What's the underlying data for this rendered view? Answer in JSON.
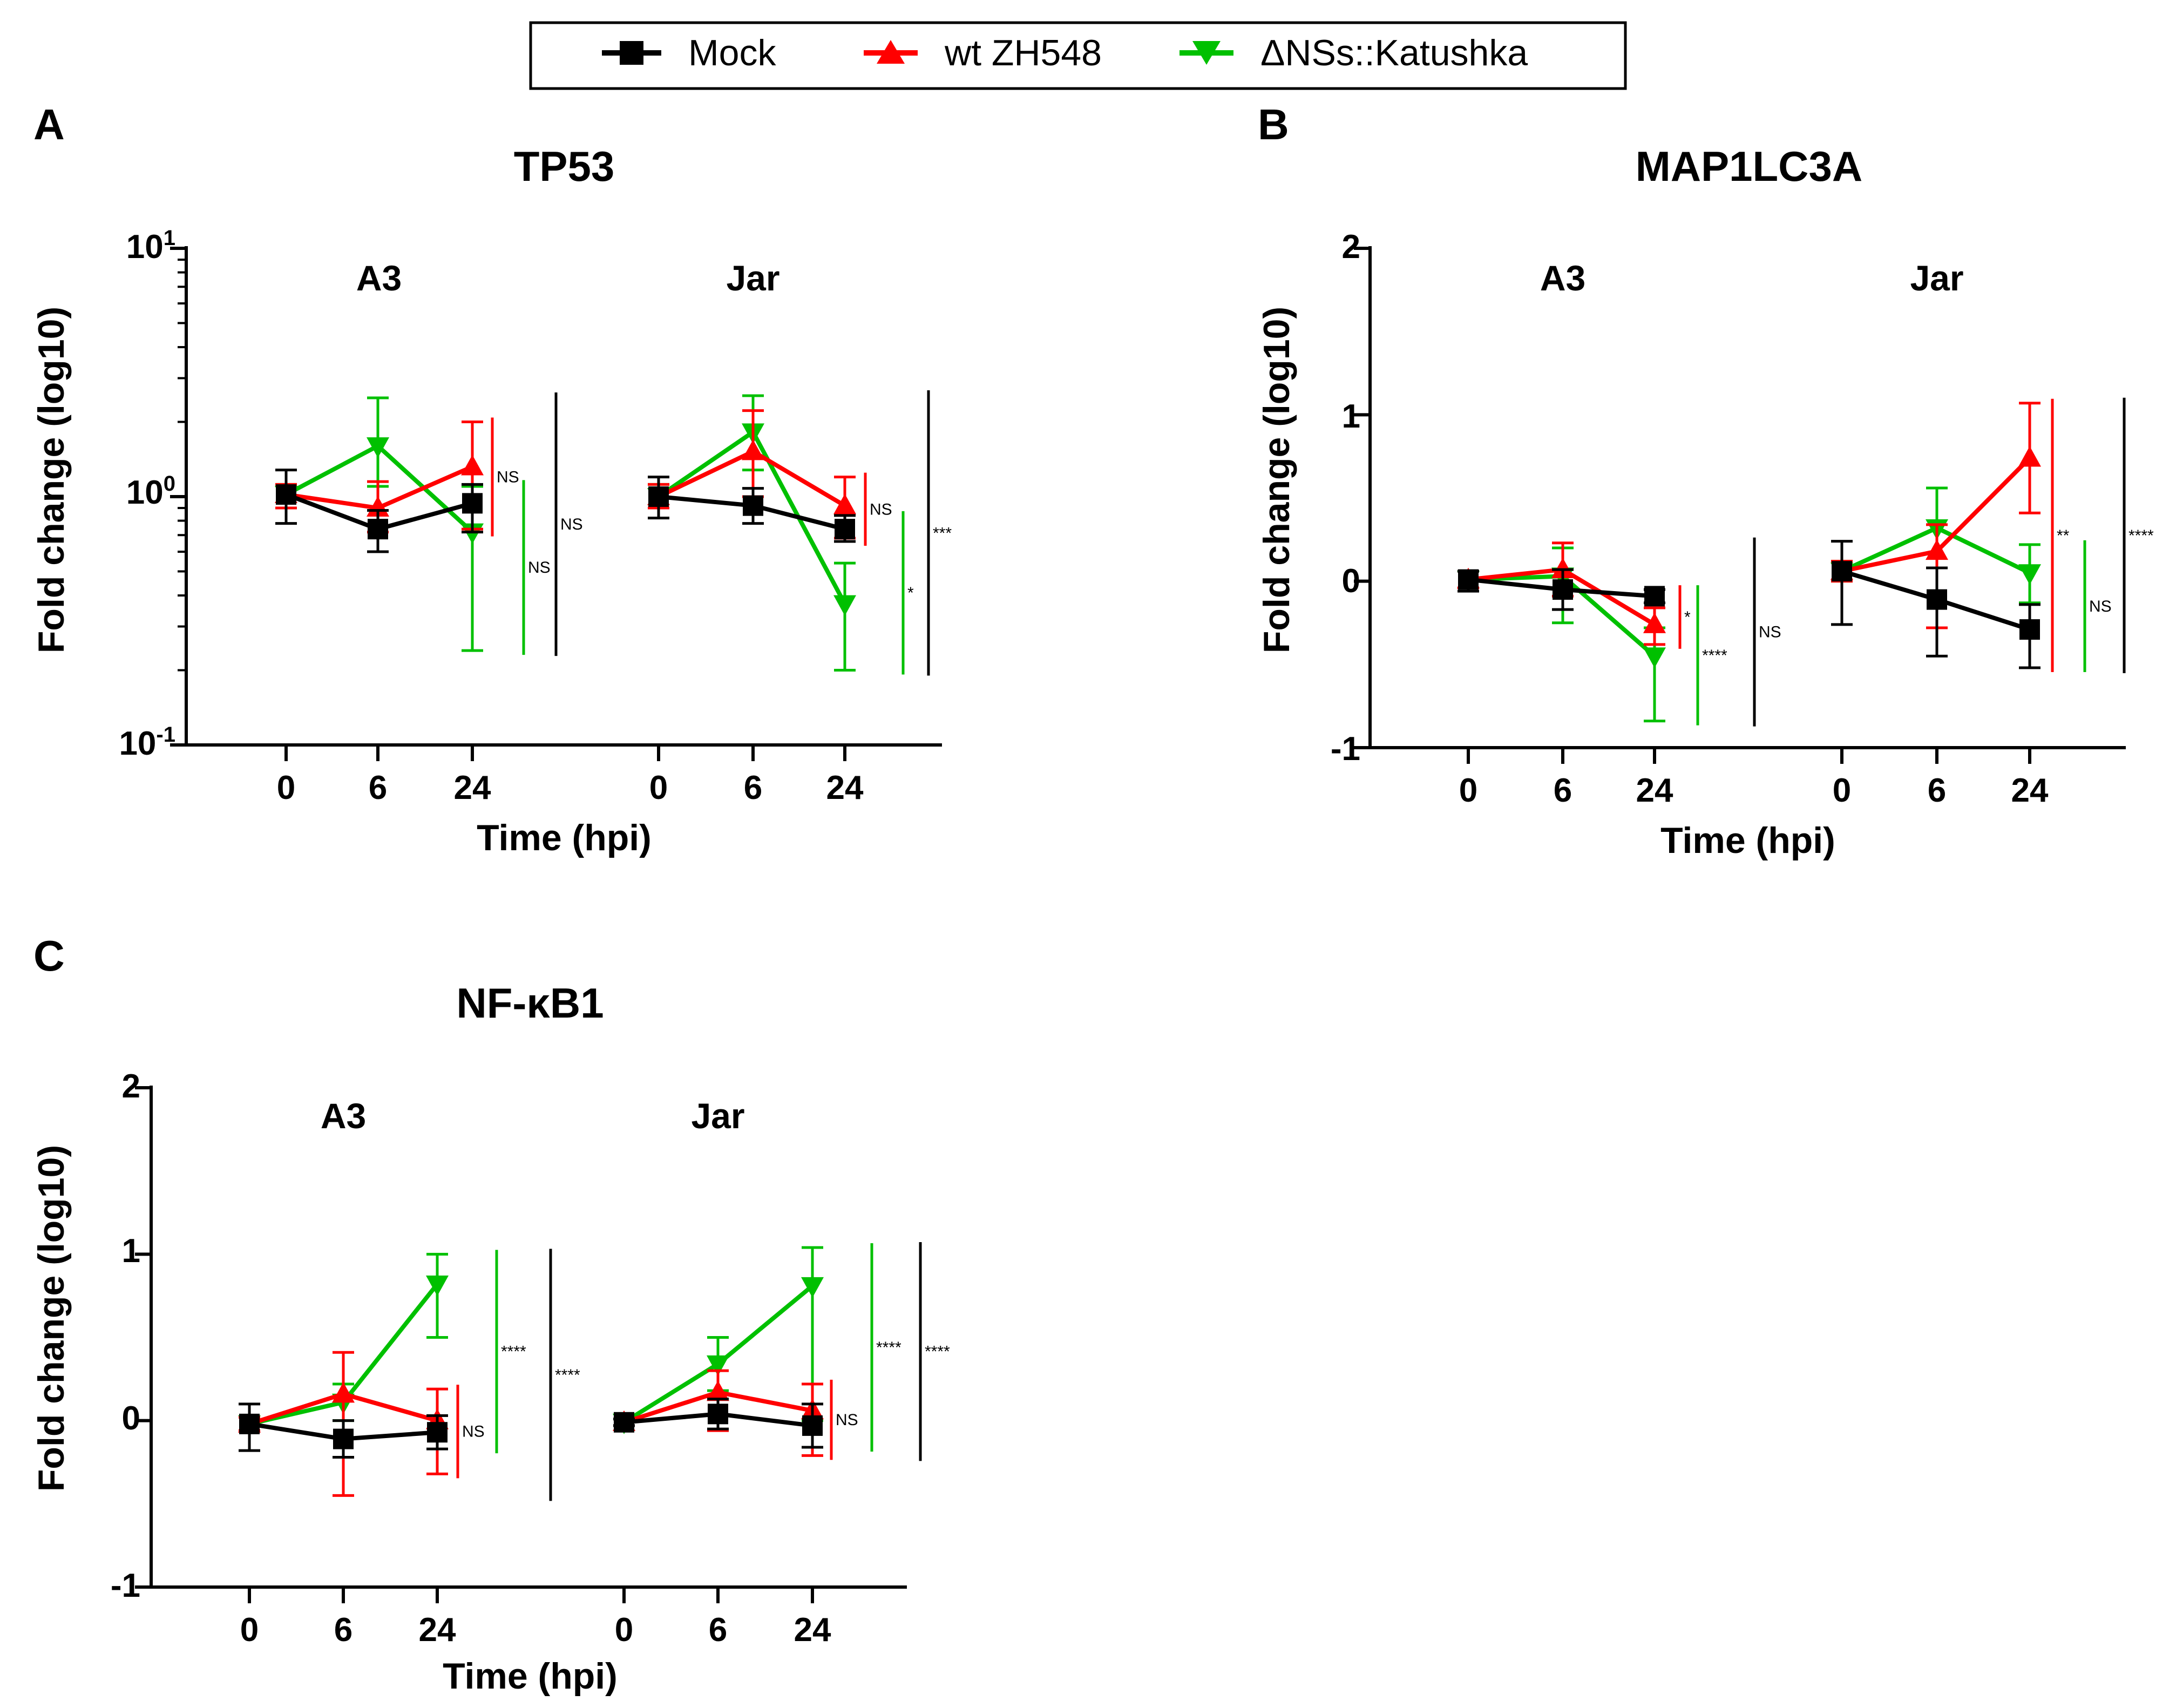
{
  "legend": {
    "entries": [
      {
        "label": "Mock",
        "color": "#000000",
        "marker": "square"
      },
      {
        "label": "wt ZH548",
        "color": "#ff0000",
        "marker": "triangle-up"
      },
      {
        "label": "ΔNSs::Katushka",
        "color": "#00c000",
        "marker": "triangle-down"
      }
    ]
  },
  "chart_data": [
    {
      "panel": "A",
      "title": "TP53",
      "type": "line",
      "yscale": "log",
      "ylabel": "Fold change (log10)",
      "xlabel": "Time (hpi)",
      "ylim": [
        0.1,
        10
      ],
      "ytick_labels": [
        {
          "base": "10",
          "exp": "1"
        },
        {
          "base": "10",
          "exp": "0"
        },
        {
          "base": "10",
          "exp": "-1"
        }
      ],
      "groups": [
        {
          "name": "A3",
          "categories": [
            "0",
            "6",
            "24"
          ],
          "series": [
            {
              "name": "Mock",
              "values": [
                1.02,
                0.74,
                0.94
              ],
              "err_low": [
                0.78,
                0.6,
                0.72
              ],
              "err_high": [
                1.28,
                0.88,
                1.12
              ]
            },
            {
              "name": "wt ZH548",
              "values": [
                1.02,
                0.9,
                1.32
              ],
              "err_low": [
                0.9,
                0.72,
                0.74
              ],
              "err_high": [
                1.12,
                1.15,
                2.0
              ]
            },
            {
              "name": "ΔNSs::Katushka",
              "values": [
                1.02,
                1.6,
                0.72
              ],
              "err_low": [
                0.9,
                1.1,
                0.24
              ],
              "err_high": [
                1.12,
                2.5,
                1.1
              ]
            }
          ],
          "significance": [
            {
              "series": "wt ZH548",
              "label": "NS"
            },
            {
              "series": "ΔNSs::Katushka",
              "label": "NS"
            },
            {
              "series": "Mock",
              "label": "NS"
            }
          ]
        },
        {
          "name": "Jar",
          "categories": [
            "0",
            "6",
            "24"
          ],
          "series": [
            {
              "name": "Mock",
              "values": [
                1.0,
                0.92,
                0.74
              ],
              "err_low": [
                0.82,
                0.78,
                0.66
              ],
              "err_high": [
                1.2,
                1.08,
                0.84
              ]
            },
            {
              "name": "wt ZH548",
              "values": [
                1.0,
                1.52,
                0.92
              ],
              "err_low": [
                0.9,
                1.0,
                0.68
              ],
              "err_high": [
                1.12,
                2.22,
                1.2
              ]
            },
            {
              "name": "ΔNSs::Katushka",
              "values": [
                1.0,
                1.82,
                0.37
              ],
              "err_low": [
                0.9,
                1.28,
                0.2
              ],
              "err_high": [
                1.12,
                2.55,
                0.54
              ]
            }
          ],
          "significance": [
            {
              "series": "wt ZH548",
              "label": "NS"
            },
            {
              "series": "ΔNSs::Katushka",
              "label": "*"
            },
            {
              "series": "Mock",
              "label": "***"
            }
          ]
        }
      ]
    },
    {
      "panel": "B",
      "title": "MAP1LC3A",
      "type": "line",
      "yscale": "linear",
      "ylabel": "Fold change (log10)",
      "xlabel": "Time (hpi)",
      "ylim": [
        -1,
        2
      ],
      "ytick_labels": [
        "2",
        "1",
        "0",
        "-1"
      ],
      "groups": [
        {
          "name": "A3",
          "categories": [
            "0",
            "6",
            "24"
          ],
          "series": [
            {
              "name": "Mock",
              "values": [
                0.01,
                -0.05,
                -0.09
              ],
              "err_low": [
                -0.06,
                -0.17,
                -0.13
              ],
              "err_high": [
                0.06,
                0.07,
                -0.05
              ]
            },
            {
              "name": "wt ZH548",
              "values": [
                0.01,
                0.07,
                -0.26
              ],
              "err_low": [
                -0.04,
                -0.09,
                -0.38
              ],
              "err_high": [
                0.06,
                0.23,
                -0.16
              ]
            },
            {
              "name": "ΔNSs::Katushka",
              "values": [
                0.01,
                0.03,
                -0.45
              ],
              "err_low": [
                -0.04,
                -0.25,
                -0.84
              ],
              "err_high": [
                0.06,
                0.2,
                -0.28
              ]
            }
          ],
          "significance": [
            {
              "series": "wt ZH548",
              "label": "*"
            },
            {
              "series": "ΔNSs::Katushka",
              "label": "****"
            },
            {
              "series": "Mock",
              "label": "NS"
            }
          ]
        },
        {
          "name": "Jar",
          "categories": [
            "0",
            "6",
            "24"
          ],
          "series": [
            {
              "name": "Mock",
              "values": [
                0.06,
                -0.11,
                -0.29
              ],
              "err_low": [
                -0.26,
                -0.45,
                -0.52
              ],
              "err_high": [
                0.24,
                0.08,
                -0.14
              ]
            },
            {
              "name": "wt ZH548",
              "values": [
                0.06,
                0.18,
                0.74
              ],
              "err_low": [
                0.0,
                -0.28,
                0.41
              ],
              "err_high": [
                0.12,
                0.34,
                1.07
              ]
            },
            {
              "name": "ΔNSs::Katushka",
              "values": [
                0.06,
                0.32,
                0.05
              ],
              "err_low": [
                0.0,
                0.08,
                -0.13
              ],
              "err_high": [
                0.12,
                0.56,
                0.22
              ]
            }
          ],
          "significance": [
            {
              "series": "wt ZH548",
              "label": "**"
            },
            {
              "series": "ΔNSs::Katushka",
              "label": "NS"
            },
            {
              "series": "Mock",
              "label": "****"
            }
          ]
        }
      ]
    },
    {
      "panel": "C",
      "title": "NF-κB1",
      "type": "line",
      "yscale": "linear",
      "ylabel": "Fold change (log10)",
      "xlabel": "Time (hpi)",
      "ylim": [
        -1,
        2
      ],
      "ytick_labels": [
        "2",
        "1",
        "0",
        "-1"
      ],
      "groups": [
        {
          "name": "A3",
          "categories": [
            "0",
            "6",
            "24"
          ],
          "series": [
            {
              "name": "Mock",
              "values": [
                -0.02,
                -0.11,
                -0.07
              ],
              "err_low": [
                -0.18,
                -0.22,
                -0.17
              ],
              "err_high": [
                0.1,
                0.0,
                0.03
              ]
            },
            {
              "name": "wt ZH548",
              "values": [
                -0.02,
                0.16,
                0.0
              ],
              "err_low": [
                -0.06,
                -0.45,
                -0.32
              ],
              "err_high": [
                0.02,
                0.41,
                0.19
              ]
            },
            {
              "name": "ΔNSs::Katushka",
              "values": [
                -0.02,
                0.11,
                0.82
              ],
              "err_low": [
                -0.06,
                0.0,
                0.5
              ],
              "err_high": [
                0.02,
                0.22,
                1.0
              ]
            }
          ],
          "significance": [
            {
              "series": "wt ZH548",
              "label": "NS"
            },
            {
              "series": "ΔNSs::Katushka",
              "label": "****"
            },
            {
              "series": "Mock",
              "label": "****"
            }
          ]
        },
        {
          "name": "Jar",
          "categories": [
            "0",
            "6",
            "24"
          ],
          "series": [
            {
              "name": "Mock",
              "values": [
                -0.01,
                0.04,
                -0.03
              ],
              "err_low": [
                -0.03,
                -0.05,
                -0.16
              ],
              "err_high": [
                0.01,
                0.13,
                0.1
              ]
            },
            {
              "name": "wt ZH548",
              "values": [
                -0.01,
                0.17,
                0.06
              ],
              "err_low": [
                -0.03,
                -0.06,
                -0.21
              ],
              "err_high": [
                0.01,
                0.3,
                0.22
              ]
            },
            {
              "name": "ΔNSs::Katushka",
              "values": [
                -0.01,
                0.34,
                0.81
              ],
              "err_low": [
                -0.03,
                0.18,
                0.0
              ],
              "err_high": [
                0.01,
                0.5,
                1.04
              ]
            }
          ],
          "significance": [
            {
              "series": "wt ZH548",
              "label": "NS"
            },
            {
              "series": "ΔNSs::Katushka",
              "label": "****"
            },
            {
              "series": "Mock",
              "label": "****"
            }
          ]
        }
      ]
    }
  ]
}
